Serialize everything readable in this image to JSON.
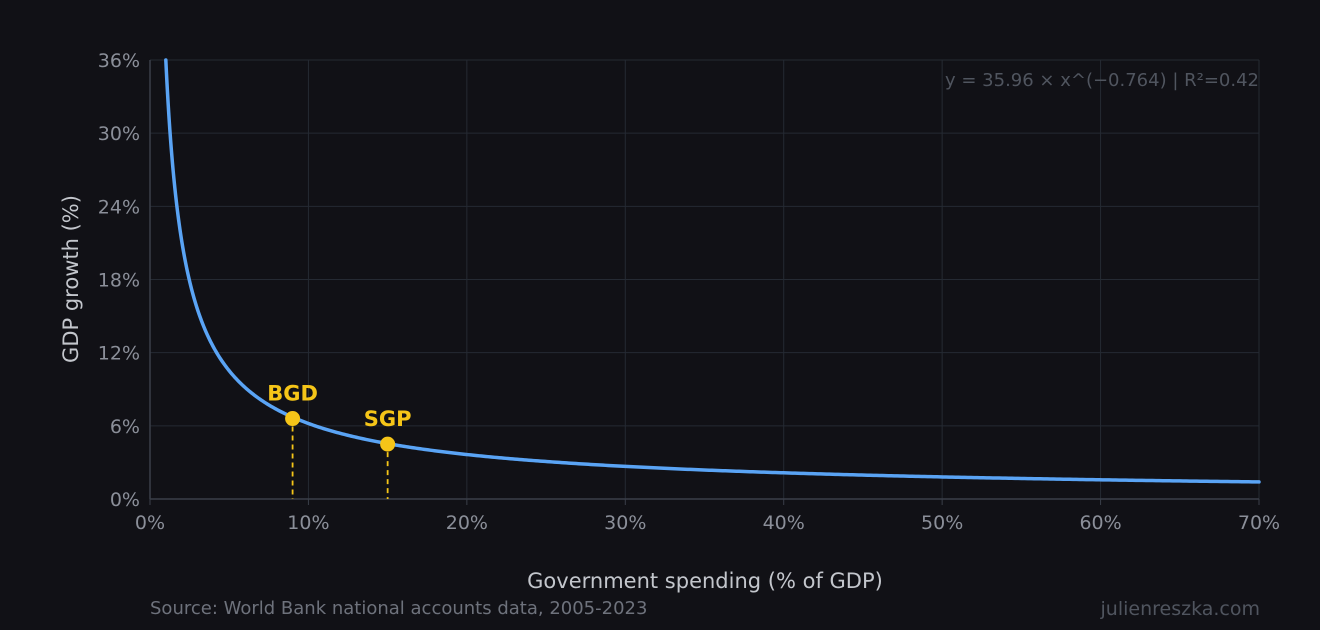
{
  "chart_data": {
    "type": "line",
    "xlabel": "Government spending (% of GDP)",
    "ylabel": "GDP growth (%)",
    "xlim": [
      0,
      70
    ],
    "ylim": [
      0,
      36
    ],
    "x_ticks": [
      0,
      10,
      20,
      30,
      40,
      50,
      60,
      70
    ],
    "y_ticks": [
      0,
      6,
      12,
      18,
      24,
      30,
      36
    ],
    "x_tick_labels": [
      "0%",
      "10%",
      "20%",
      "30%",
      "40%",
      "50%",
      "60%",
      "70%"
    ],
    "y_tick_labels": [
      "0%",
      "6%",
      "12%",
      "18%",
      "24%",
      "30%",
      "36%"
    ],
    "grid": true,
    "series": [
      {
        "model": "power",
        "coefficient": 35.96,
        "exponent": -0.764,
        "color": "#5aa4f5"
      }
    ],
    "annotation": "y = 35.96 × x^(−0.764)  |  R²=0.42",
    "highlighted_points": [
      {
        "label": "BGD",
        "x": 9.0,
        "y": 6.6
      },
      {
        "label": "SGP",
        "x": 15.0,
        "y": 4.5
      }
    ],
    "highlight_color": "#f5c518"
  },
  "footer": {
    "source": "Source: World Bank national accounts data, 2005-2023",
    "credit": "julienreszka.com"
  }
}
